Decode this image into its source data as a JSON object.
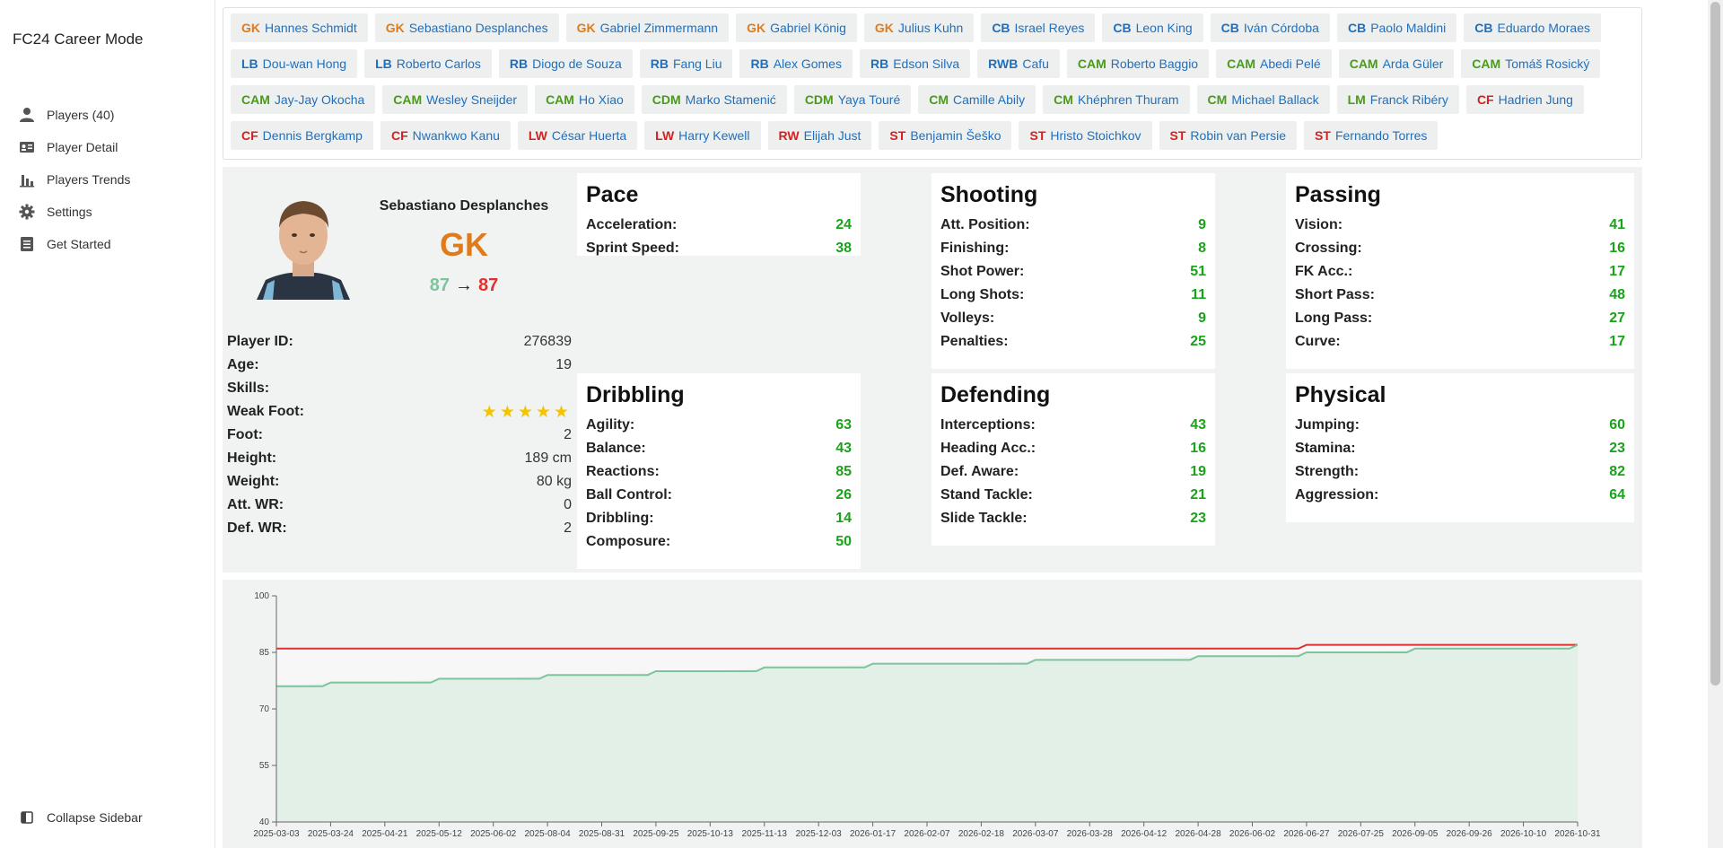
{
  "app": {
    "title": "FC24 Career Mode"
  },
  "nav": {
    "items": [
      {
        "label": "Players (40)",
        "icon": "person-icon"
      },
      {
        "label": "Player Detail",
        "icon": "id-card-icon"
      },
      {
        "label": "Players Trends",
        "icon": "bar-chart-icon"
      },
      {
        "label": "Settings",
        "icon": "gear-icon"
      },
      {
        "label": "Get Started",
        "icon": "document-icon"
      }
    ],
    "collapse_label": "Collapse Sidebar"
  },
  "colors": {
    "gk": "#e07b1a",
    "def": "#1e6fbf",
    "mid": "#4a9a1a",
    "att": "#d62020",
    "stat": "#1aa31a",
    "chart_current": "#7dc49b",
    "chart_potential": "#e03030"
  },
  "roster": [
    {
      "pos": "GK",
      "name": "Hannes Schmidt",
      "group": "gk"
    },
    {
      "pos": "GK",
      "name": "Sebastiano Desplanches",
      "group": "gk"
    },
    {
      "pos": "GK",
      "name": "Gabriel Zimmermann",
      "group": "gk"
    },
    {
      "pos": "GK",
      "name": "Gabriel König",
      "group": "gk"
    },
    {
      "pos": "GK",
      "name": "Julius Kuhn",
      "group": "gk"
    },
    {
      "pos": "CB",
      "name": "Israel Reyes",
      "group": "def"
    },
    {
      "pos": "CB",
      "name": "Leon King",
      "group": "def"
    },
    {
      "pos": "CB",
      "name": "Iván Córdoba",
      "group": "def"
    },
    {
      "pos": "CB",
      "name": "Paolo Maldini",
      "group": "def"
    },
    {
      "pos": "CB",
      "name": "Eduardo Moraes",
      "group": "def"
    },
    {
      "pos": "LB",
      "name": "Dou-wan Hong",
      "group": "def"
    },
    {
      "pos": "LB",
      "name": "Roberto Carlos",
      "group": "def"
    },
    {
      "pos": "RB",
      "name": "Diogo de Souza",
      "group": "def"
    },
    {
      "pos": "RB",
      "name": "Fang Liu",
      "group": "def"
    },
    {
      "pos": "RB",
      "name": "Alex Gomes",
      "group": "def"
    },
    {
      "pos": "RB",
      "name": "Edson Silva",
      "group": "def"
    },
    {
      "pos": "RWB",
      "name": "Cafu",
      "group": "def"
    },
    {
      "pos": "CAM",
      "name": "Roberto Baggio",
      "group": "mid"
    },
    {
      "pos": "CAM",
      "name": "Abedi Pelé",
      "group": "mid"
    },
    {
      "pos": "CAM",
      "name": "Arda Güler",
      "group": "mid"
    },
    {
      "pos": "CAM",
      "name": "Tomáš Rosický",
      "group": "mid"
    },
    {
      "pos": "CAM",
      "name": "Jay-Jay Okocha",
      "group": "mid"
    },
    {
      "pos": "CAM",
      "name": "Wesley Sneijder",
      "group": "mid"
    },
    {
      "pos": "CAM",
      "name": "Ho Xiao",
      "group": "mid"
    },
    {
      "pos": "CDM",
      "name": "Marko Stamenić",
      "group": "mid"
    },
    {
      "pos": "CDM",
      "name": "Yaya Touré",
      "group": "mid"
    },
    {
      "pos": "CM",
      "name": "Camille Abily",
      "group": "mid"
    },
    {
      "pos": "CM",
      "name": "Khéphren Thuram",
      "group": "mid"
    },
    {
      "pos": "CM",
      "name": "Michael Ballack",
      "group": "mid"
    },
    {
      "pos": "LM",
      "name": "Franck Ribéry",
      "group": "mid"
    },
    {
      "pos": "CF",
      "name": "Hadrien Jung",
      "group": "att"
    },
    {
      "pos": "CF",
      "name": "Dennis Bergkamp",
      "group": "att"
    },
    {
      "pos": "CF",
      "name": "Nwankwo Kanu",
      "group": "att"
    },
    {
      "pos": "LW",
      "name": "César Huerta",
      "group": "att"
    },
    {
      "pos": "LW",
      "name": "Harry Kewell",
      "group": "att"
    },
    {
      "pos": "RW",
      "name": "Elijah Just",
      "group": "att"
    },
    {
      "pos": "ST",
      "name": "Benjamin Šeško",
      "group": "att"
    },
    {
      "pos": "ST",
      "name": "Hristo Stoichkov",
      "group": "att"
    },
    {
      "pos": "ST",
      "name": "Robin van Persie",
      "group": "att"
    },
    {
      "pos": "ST",
      "name": "Fernando Torres",
      "group": "att"
    }
  ],
  "player": {
    "name": "Sebastiano Desplanches",
    "position": "GK",
    "overall": "87",
    "arrow": "→",
    "potential": "87",
    "info": [
      {
        "label": "Player ID:",
        "value": "276839"
      },
      {
        "label": "Age:",
        "value": "19"
      },
      {
        "label": "Skills:",
        "value": ""
      },
      {
        "label": "Weak Foot:",
        "value": ""
      },
      {
        "label": "Foot:",
        "value": "2"
      },
      {
        "label": "Height:",
        "value": "189 cm"
      },
      {
        "label": "Weight:",
        "value": "80 kg"
      },
      {
        "label": "Att. WR:",
        "value": "0"
      },
      {
        "label": "Def. WR:",
        "value": "2"
      }
    ],
    "weak_foot_stars": 5
  },
  "attributes": {
    "pace": {
      "title": "Pace",
      "stats": [
        {
          "label": "Acceleration:",
          "value": "24"
        },
        {
          "label": "Sprint Speed:",
          "value": "38"
        }
      ]
    },
    "shooting": {
      "title": "Shooting",
      "stats": [
        {
          "label": "Att. Position:",
          "value": "9"
        },
        {
          "label": "Finishing:",
          "value": "8"
        },
        {
          "label": "Shot Power:",
          "value": "51"
        },
        {
          "label": "Long Shots:",
          "value": "11"
        },
        {
          "label": "Volleys:",
          "value": "9"
        },
        {
          "label": "Penalties:",
          "value": "25"
        }
      ]
    },
    "passing": {
      "title": "Passing",
      "stats": [
        {
          "label": "Vision:",
          "value": "41"
        },
        {
          "label": "Crossing:",
          "value": "16"
        },
        {
          "label": "FK Acc.:",
          "value": "17"
        },
        {
          "label": "Short Pass:",
          "value": "48"
        },
        {
          "label": "Long Pass:",
          "value": "27"
        },
        {
          "label": "Curve:",
          "value": "17"
        }
      ]
    },
    "dribbling": {
      "title": "Dribbling",
      "stats": [
        {
          "label": "Agility:",
          "value": "63"
        },
        {
          "label": "Balance:",
          "value": "43"
        },
        {
          "label": "Reactions:",
          "value": "85"
        },
        {
          "label": "Ball Control:",
          "value": "26"
        },
        {
          "label": "Dribbling:",
          "value": "14"
        },
        {
          "label": "Composure:",
          "value": "50"
        }
      ]
    },
    "defending": {
      "title": "Defending",
      "stats": [
        {
          "label": "Interceptions:",
          "value": "43"
        },
        {
          "label": "Heading Acc.:",
          "value": "16"
        },
        {
          "label": "Def. Aware:",
          "value": "19"
        },
        {
          "label": "Stand Tackle:",
          "value": "21"
        },
        {
          "label": "Slide Tackle:",
          "value": "23"
        }
      ]
    },
    "physical": {
      "title": "Physical",
      "stats": [
        {
          "label": "Jumping:",
          "value": "60"
        },
        {
          "label": "Stamina:",
          "value": "23"
        },
        {
          "label": "Strength:",
          "value": "82"
        },
        {
          "label": "Aggression:",
          "value": "64"
        }
      ]
    }
  },
  "chart_data": {
    "type": "area",
    "ylim": [
      40,
      100
    ],
    "yticks": [
      40,
      55,
      70,
      85,
      100
    ],
    "x": [
      "2025-03-03",
      "2025-03-24",
      "2025-04-21",
      "2025-05-12",
      "2025-06-02",
      "2025-08-04",
      "2025-08-31",
      "2025-09-25",
      "2025-10-13",
      "2025-11-13",
      "2025-12-03",
      "2026-01-17",
      "2026-02-07",
      "2026-02-18",
      "2026-03-07",
      "2026-03-28",
      "2026-04-12",
      "2026-04-28",
      "2026-06-02",
      "2026-06-27",
      "2026-07-25",
      "2026-09-05",
      "2026-09-26",
      "2026-10-10",
      "2026-10-31"
    ],
    "series": [
      {
        "values": [
          76,
          77,
          77,
          78,
          78,
          79,
          79,
          80,
          80,
          81,
          81,
          82,
          82,
          82,
          83,
          83,
          83,
          84,
          84,
          85,
          85,
          86,
          86,
          86,
          87
        ]
      },
      {
        "values": [
          86,
          86,
          86,
          86,
          86,
          86,
          86,
          86,
          86,
          86,
          86,
          86,
          86,
          86,
          86,
          86,
          86,
          86,
          86,
          87,
          87,
          87,
          87,
          87,
          87
        ]
      }
    ]
  }
}
